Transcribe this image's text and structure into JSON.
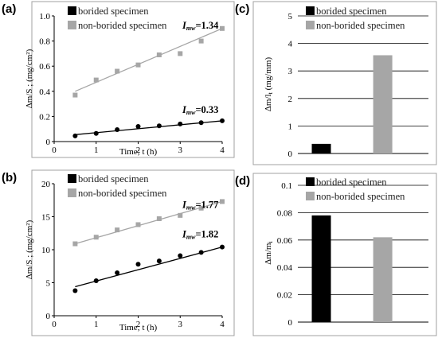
{
  "panels": {
    "a": {
      "letter": "(a)"
    },
    "b": {
      "letter": "(b)"
    },
    "c": {
      "letter": "(c)"
    },
    "d": {
      "letter": "(d)"
    }
  },
  "colors": {
    "borided": "#000000",
    "non_borided": "#a6a6a6",
    "frame": "#a0a0a0",
    "line_black": "#000000",
    "line_gray": "#a6a6a6"
  },
  "chart_data": [
    {
      "id": "a",
      "type": "scatter",
      "ylabel": "Δm/S ; (mg/cm²)",
      "xlabel": "Time; t (h)",
      "xlim": [
        0,
        4
      ],
      "ylim": [
        0,
        1.0
      ],
      "xticks": [
        0,
        1,
        2,
        3,
        4
      ],
      "yticks": [
        0,
        0.2,
        0.4,
        0.6,
        0.8,
        1.0
      ],
      "ytick_labels": [
        "0",
        "0.2",
        "0.4",
        "0.6",
        "0.8",
        "1.0"
      ],
      "legend": [
        "borided specimen",
        "non-borided specimen"
      ],
      "legend_position": "top-left",
      "series": [
        {
          "name": "borided specimen",
          "x": [
            0.5,
            1,
            1.5,
            2,
            2.5,
            3,
            3.5,
            4
          ],
          "y": [
            0.045,
            0.065,
            0.095,
            0.12,
            0.125,
            0.14,
            0.15,
            0.165
          ],
          "fit": [
            0.055,
            0.165
          ],
          "annotation_label": "I",
          "annotation_sub": "mw",
          "annotation_value": "=0.33"
        },
        {
          "name": "non-borided specimen",
          "x": [
            0.5,
            1,
            1.5,
            2,
            2.5,
            3,
            3.5,
            4
          ],
          "y": [
            0.37,
            0.49,
            0.56,
            0.61,
            0.69,
            0.7,
            0.8,
            0.9
          ],
          "fit": [
            0.4,
            0.9
          ],
          "annotation_label": "I",
          "annotation_sub": "mw",
          "annotation_value": "=1.34"
        }
      ]
    },
    {
      "id": "b",
      "type": "scatter",
      "ylabel": "Δm/S ; (mg/cm²)",
      "xlabel": "Time; t (h)",
      "xlim": [
        0,
        4
      ],
      "ylim": [
        0,
        20
      ],
      "xticks": [
        0,
        1,
        2,
        3,
        4
      ],
      "yticks": [
        0,
        5,
        10,
        15,
        20
      ],
      "ytick_labels": [
        "0",
        "5",
        "10",
        "15",
        "20"
      ],
      "legend": [
        "borided specimen",
        "non-borided specimen"
      ],
      "legend_position": "top-left",
      "series": [
        {
          "name": "borided specimen",
          "x": [
            0.5,
            1,
            1.5,
            2,
            2.5,
            3,
            3.5,
            4
          ],
          "y": [
            3.8,
            5.3,
            6.5,
            7.8,
            8.3,
            9.1,
            9.6,
            10.4
          ],
          "fit": [
            4.4,
            10.4
          ],
          "annotation_label": "I",
          "annotation_sub": "mw",
          "annotation_value": "=1.82"
        },
        {
          "name": "non-borided specimen",
          "x": [
            0.5,
            1,
            1.5,
            2,
            2.5,
            3,
            3.5,
            4
          ],
          "y": [
            10.9,
            11.9,
            13.0,
            13.8,
            14.7,
            15.2,
            16.3,
            17.3
          ],
          "fit": [
            10.9,
            17.3
          ],
          "annotation_label": "I",
          "annotation_sub": "mw",
          "annotation_value": "=1.77"
        }
      ]
    },
    {
      "id": "c",
      "type": "bar",
      "ylabel": "Δm/l",
      "ylabel_sub": "t",
      "ylabel_units": " (mg/mm)",
      "ylim": [
        0,
        5
      ],
      "yticks": [
        0,
        1,
        2,
        3,
        4,
        5
      ],
      "ytick_labels": [
        "0",
        "1",
        "2",
        "3",
        "4",
        "5"
      ],
      "grid": true,
      "legend": [
        "borided specimen",
        "non-borided specimen"
      ],
      "legend_position": "top-left",
      "series": [
        {
          "name": "borided specimen",
          "values": [
            0.35
          ]
        },
        {
          "name": "non-borided specimen",
          "values": [
            3.57
          ]
        }
      ]
    },
    {
      "id": "d",
      "type": "bar",
      "ylabel": "Δm/m",
      "ylabel_sub": "i",
      "ylabel_units": "",
      "ylim": [
        0,
        0.1
      ],
      "yticks": [
        0,
        0.02,
        0.04,
        0.06,
        0.08,
        0.1
      ],
      "ytick_labels": [
        "0",
        "0.02",
        "0.04",
        "0.06",
        "0.08",
        "0.1"
      ],
      "grid": true,
      "legend": [
        "borided specimen",
        "non-borided specimen"
      ],
      "legend_position": "top-left",
      "series": [
        {
          "name": "borided specimen",
          "values": [
            0.078
          ]
        },
        {
          "name": "non-borided specimen",
          "values": [
            0.062
          ]
        }
      ]
    }
  ]
}
